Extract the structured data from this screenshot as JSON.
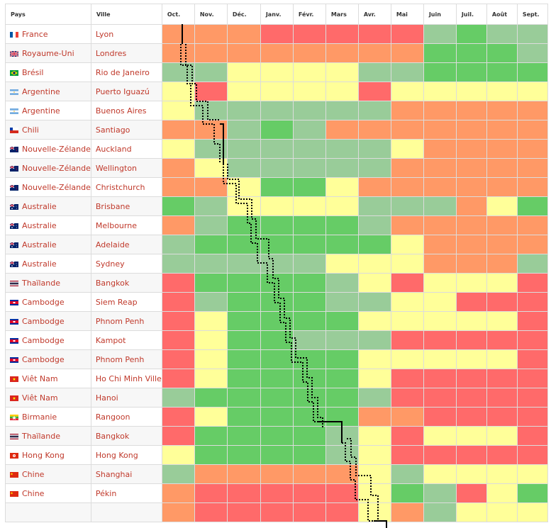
{
  "headers": {
    "pays": "Pays",
    "ville": "Ville",
    "months": [
      "Oct.",
      "Nov.",
      "Déc.",
      "Janv.",
      "Févr.",
      "Mars",
      "Avr.",
      "Mai",
      "Juin",
      "Juil.",
      "Août",
      "Sept."
    ]
  },
  "colors": {
    "R": "#ff6a6a",
    "O": "#ff9966",
    "Y": "#ffff99",
    "L": "#99cc99",
    "G": "#66cc66",
    "link": "#c0392b"
  },
  "rows": [
    {
      "pays": "France",
      "ville": "Lyon",
      "flag": "flag-france-icon",
      "cells": "OOORRRRRLGLL"
    },
    {
      "pays": "Royaume-Uni",
      "ville": "Londres",
      "flag": "flag-uk-icon",
      "cells": "OOOOOOOOGGGL"
    },
    {
      "pays": "Brésil",
      "ville": "Rio de Janeiro",
      "flag": "flag-brazil-icon",
      "cells": "LLYYYYLLGGGG"
    },
    {
      "pays": "Argentine",
      "ville": "Puerto Iguazú",
      "flag": "flag-argentina-icon",
      "cells": "YRYYYYRYYYYY"
    },
    {
      "pays": "Argentine",
      "ville": "Buenos Aires",
      "flag": "flag-argentina-icon",
      "cells": "YLLLLLLOOOOO"
    },
    {
      "pays": "Chili",
      "ville": "Santiago",
      "flag": "flag-chile-icon",
      "cells": "OOLGLOOOOOOO"
    },
    {
      "pays": "Nouvelle-Zélande",
      "ville": "Auckland",
      "flag": "flag-new-zealand-icon",
      "cells": "YLLLLLLYOOOO"
    },
    {
      "pays": "Nouvelle-Zélande",
      "ville": "Wellington",
      "flag": "flag-new-zealand-icon",
      "cells": "OYLLLLLOOOOO"
    },
    {
      "pays": "Nouvelle-Zélande",
      "ville": "Christchurch",
      "flag": "flag-new-zealand-icon",
      "cells": "OOYGGYOOOOOO"
    },
    {
      "pays": "Australie",
      "ville": "Brisbane",
      "flag": "flag-australia-icon",
      "cells": "GLYYYYLLLOYG"
    },
    {
      "pays": "Australie",
      "ville": "Melbourne",
      "flag": "flag-australia-icon",
      "cells": "OLGGGGLOOOOO"
    },
    {
      "pays": "Australie",
      "ville": "Adelaide",
      "flag": "flag-australia-icon",
      "cells": "LGGGGGGYOOOO"
    },
    {
      "pays": "Australie",
      "ville": "Sydney",
      "flag": "flag-australia-icon",
      "cells": "LLLLLYYYOOOL"
    },
    {
      "pays": "Thaïlande",
      "ville": "Bangkok",
      "flag": "flag-thailand-icon",
      "cells": "RGGGGLYRYYYR"
    },
    {
      "pays": "Cambodge",
      "ville": "Siem Reap",
      "flag": "flag-cambodia-icon",
      "cells": "RLGGGLLYYRRR"
    },
    {
      "pays": "Cambodge",
      "ville": "Phnom Penh",
      "flag": "flag-cambodia-icon",
      "cells": "RYGGGGYYYYYR"
    },
    {
      "pays": "Cambodge",
      "ville": "Kampot",
      "flag": "flag-cambodia-icon",
      "cells": "RYGGLLLRRRRR"
    },
    {
      "pays": "Cambodge",
      "ville": "Phnom Penh",
      "flag": "flag-cambodia-icon",
      "cells": "RYGGGGYYYYYR"
    },
    {
      "pays": "Viêt Nam",
      "ville": "Ho Chi Minh Ville",
      "flag": "flag-vietnam-icon",
      "cells": "RYGGGGYRRRRR"
    },
    {
      "pays": "Viêt Nam",
      "ville": "Hanoi",
      "flag": "flag-vietnam-icon",
      "cells": "LGGGGGLRRRRR"
    },
    {
      "pays": "Birmanie",
      "ville": "Rangoon",
      "flag": "flag-myanmar-icon",
      "cells": "RYGGGGOORRRR"
    },
    {
      "pays": "Thaïlande",
      "ville": "Bangkok",
      "flag": "flag-thailand-icon",
      "cells": "RGGGGLYRYYYR"
    },
    {
      "pays": "Hong Kong",
      "ville": "Hong Kong",
      "flag": "flag-hong-kong-icon",
      "cells": "YGGGGLYRRRRR"
    },
    {
      "pays": "Chine",
      "ville": "Shanghai",
      "flag": "flag-china-icon",
      "cells": "LOOOOOYLYYYY"
    },
    {
      "pays": "Chine",
      "ville": "Pékin",
      "flag": "flag-china-icon",
      "cells": "ORRRRRYGLRYG"
    },
    {
      "pays": "",
      "ville": "",
      "flag": "",
      "cells": "ORRRRRYOLYYY"
    }
  ]
}
